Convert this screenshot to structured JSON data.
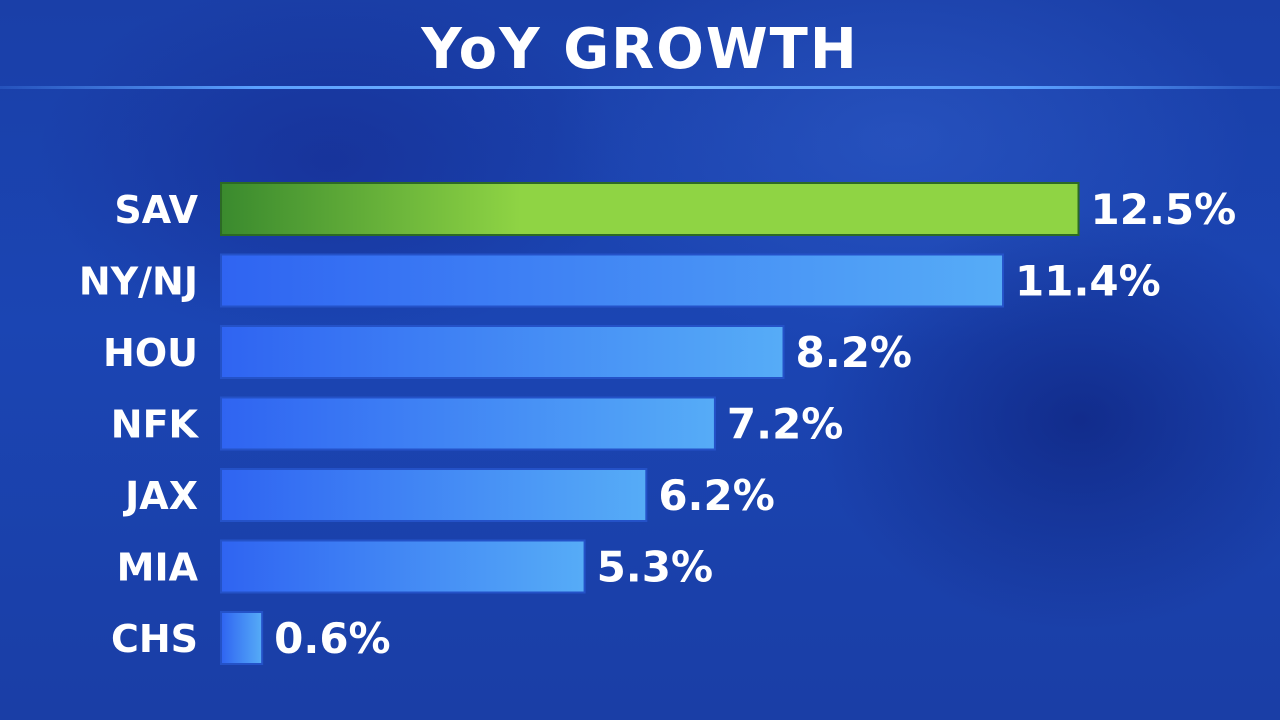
{
  "header": {
    "title": "YoY GROWTH"
  },
  "colors": {
    "highlight_bar_start": "#3a8a2e",
    "highlight_bar_end": "#8fd444",
    "bar_start": "#2f64f2",
    "bar_end": "#56acf7",
    "text": "#ffffff"
  },
  "chart_data": {
    "type": "bar",
    "orientation": "horizontal",
    "title": "YoY GROWTH",
    "xlabel": "",
    "ylabel": "",
    "unit": "%",
    "categories": [
      "SAV",
      "NY/NJ",
      "HOU",
      "NFK",
      "JAX",
      "MIA",
      "CHS"
    ],
    "values": [
      12.5,
      11.4,
      8.2,
      7.2,
      6.2,
      5.3,
      0.6
    ],
    "value_labels": [
      "12.5%",
      "11.4%",
      "8.2%",
      "7.2%",
      "6.2%",
      "5.3%",
      "0.6%"
    ],
    "highlight": "SAV",
    "grid": false,
    "legend": "none"
  }
}
